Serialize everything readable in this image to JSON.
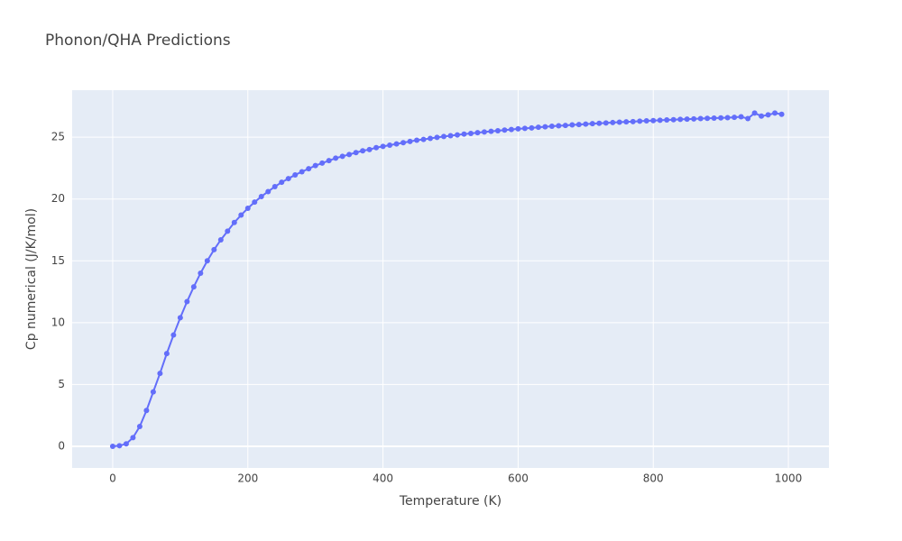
{
  "chart_data": {
    "type": "line",
    "title": "Phonon/QHA Predictions",
    "x_label": "Temperature (K)",
    "y_label": "Cp numerical (J/K/mol)",
    "x": [
      0,
      10,
      20,
      30,
      40,
      50,
      60,
      70,
      80,
      90,
      100,
      110,
      120,
      130,
      140,
      150,
      160,
      170,
      180,
      190,
      200,
      210,
      220,
      230,
      240,
      250,
      260,
      270,
      280,
      290,
      300,
      310,
      320,
      330,
      340,
      350,
      360,
      370,
      380,
      390,
      400,
      410,
      420,
      430,
      440,
      450,
      460,
      470,
      480,
      490,
      500,
      510,
      520,
      530,
      540,
      550,
      560,
      570,
      580,
      590,
      600,
      610,
      620,
      630,
      640,
      650,
      660,
      670,
      680,
      690,
      700,
      710,
      720,
      730,
      740,
      750,
      760,
      770,
      780,
      790,
      800,
      810,
      820,
      830,
      840,
      850,
      860,
      870,
      880,
      890,
      900,
      910,
      920,
      930,
      940,
      950,
      960,
      970,
      980,
      990
    ],
    "series": [
      {
        "color": "#636efa",
        "values": [
          0,
          0.05,
          0.2,
          0.7,
          1.6,
          2.9,
          4.4,
          5.9,
          7.5,
          9.0,
          10.4,
          11.7,
          12.9,
          14.0,
          15.0,
          15.9,
          16.7,
          17.4,
          18.1,
          18.7,
          19.25,
          19.75,
          20.2,
          20.6,
          21.0,
          21.35,
          21.65,
          21.95,
          22.2,
          22.45,
          22.7,
          22.9,
          23.1,
          23.3,
          23.45,
          23.6,
          23.75,
          23.9,
          24.0,
          24.15,
          24.25,
          24.35,
          24.45,
          24.55,
          24.65,
          24.75,
          24.82,
          24.9,
          24.98,
          25.05,
          25.12,
          25.18,
          25.25,
          25.3,
          25.36,
          25.42,
          25.47,
          25.52,
          25.57,
          25.62,
          25.67,
          25.71,
          25.75,
          25.8,
          25.84,
          25.88,
          25.92,
          25.95,
          25.99,
          26.02,
          26.06,
          26.09,
          26.12,
          26.15,
          26.18,
          26.21,
          26.24,
          26.26,
          26.29,
          26.32,
          26.34,
          26.37,
          26.39,
          26.41,
          26.44,
          26.46,
          26.48,
          26.5,
          26.52,
          26.54,
          26.56,
          26.58,
          26.6,
          26.65,
          26.5,
          26.95,
          26.7,
          26.8,
          26.95,
          26.85
        ]
      }
    ],
    "xlim": [
      -60,
      1060
    ],
    "ylim": [
      -1.75,
      28.8
    ],
    "xticks": [
      0,
      200,
      400,
      600,
      800,
      1000
    ],
    "yticks": [
      0,
      5,
      10,
      15,
      20,
      25
    ],
    "grid": true
  }
}
